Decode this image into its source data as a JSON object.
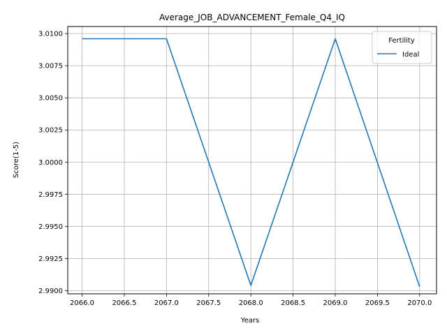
{
  "chart_data": {
    "type": "line",
    "title": "Average_JOB_ADVANCEMENT_Female_Q4_IQ",
    "xlabel": "Years",
    "ylabel": "Score(1-5)",
    "xlim": [
      2065.83,
      2070.2
    ],
    "ylim": [
      2.98975,
      3.01055
    ],
    "xticks": [
      "2066.0",
      "2066.5",
      "2067.0",
      "2067.5",
      "2068.0",
      "2068.5",
      "2069.0",
      "2069.5",
      "2070.0"
    ],
    "xtick_values": [
      2066.0,
      2066.5,
      2067.0,
      2067.5,
      2068.0,
      2068.5,
      2069.0,
      2069.5,
      2070.0
    ],
    "yticks": [
      "2.9900",
      "2.9925",
      "2.9950",
      "2.9975",
      "3.0000",
      "3.0025",
      "3.0050",
      "3.0075",
      "3.0100"
    ],
    "ytick_values": [
      2.99,
      2.9925,
      2.995,
      2.9975,
      3.0,
      3.0025,
      3.005,
      3.0075,
      3.01
    ],
    "grid": true,
    "legend": {
      "title": "Fertility",
      "placement": "top-right"
    },
    "x": [
      2066,
      2067,
      2068,
      2069,
      2070
    ],
    "series": [
      {
        "name": "Ideal",
        "color": "#1f77b4",
        "values": [
          3.0096,
          3.0096,
          2.9904,
          3.0096,
          2.9903
        ]
      }
    ]
  }
}
